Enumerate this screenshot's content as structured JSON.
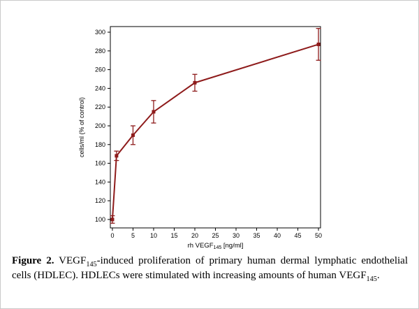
{
  "figure": {
    "caption": {
      "label": "Figure 2.",
      "seg1": " VEGF",
      "sub1": "145",
      "seg2": "-induced proliferation of primary human dermal lymphatic endothelial cells (HDLEC). HDLECs were stimulated with increasing amounts of human VEGF",
      "sub2": "145",
      "seg3": "."
    }
  },
  "chart_data": {
    "type": "line",
    "x": [
      0,
      1,
      5,
      10,
      20,
      50
    ],
    "y": [
      100,
      168,
      190,
      215,
      246,
      287
    ],
    "yerr": [
      4,
      5,
      10,
      12,
      9,
      17
    ],
    "xlabel": "rh VEGF145 [ng/ml]",
    "xlabel_parts": {
      "pre": "rh VEGF",
      "sub": "145",
      "post": " [ng/ml]"
    },
    "ylabel": "cells/ml (% of control)",
    "xlim": [
      -0.5,
      50.5
    ],
    "ylim": [
      91,
      306
    ],
    "xticks": [
      0,
      5,
      10,
      15,
      20,
      25,
      30,
      35,
      40,
      45,
      50
    ],
    "yticks": [
      100,
      120,
      140,
      160,
      180,
      200,
      220,
      240,
      260,
      280,
      300
    ],
    "line_color": "#8e1b1b",
    "axis_color": "#000000",
    "marker": "square",
    "grid": false,
    "frame": "box",
    "legend_position": "none"
  }
}
